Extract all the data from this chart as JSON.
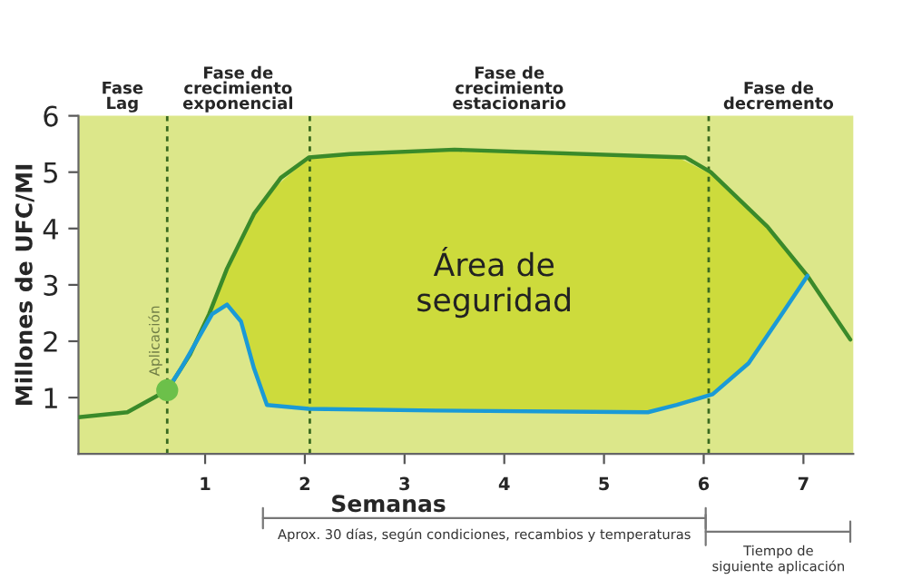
{
  "chart_data": {
    "type": "line",
    "xlabel": "Semanas",
    "ylabel": "Millones de UFC/MI",
    "xlim": [
      -0.27,
      7.5
    ],
    "xticks": [
      1,
      2,
      3,
      4,
      5,
      6,
      7
    ],
    "ylim": [
      0,
      6
    ],
    "yticks": [
      1,
      2,
      3,
      4,
      5,
      6
    ],
    "series": [
      {
        "color": "#3a8a2a",
        "x": [
          -0.27,
          0.22,
          0.62,
          0.85,
          1.04,
          1.22,
          1.49,
          1.76,
          2.04,
          2.45,
          3.5,
          5.82,
          6.07,
          6.64,
          7.04,
          7.47
        ],
        "values": [
          0.65,
          0.74,
          1.13,
          1.77,
          2.48,
          3.29,
          4.26,
          4.9,
          5.26,
          5.32,
          5.4,
          5.26,
          5.0,
          4.03,
          3.16,
          2.03
        ]
      },
      {
        "color": "#1a9ad6",
        "x": [
          0.62,
          0.76,
          1.07,
          1.22,
          1.36,
          1.49,
          1.62,
          2.04,
          3.31,
          5.44,
          5.73,
          6.09,
          6.45,
          6.76,
          7.04
        ],
        "values": [
          1.13,
          1.52,
          2.48,
          2.65,
          2.35,
          1.52,
          0.87,
          0.8,
          0.77,
          0.74,
          0.87,
          1.06,
          1.61,
          2.42,
          3.16
        ],
        "lower": [
          1.13,
          1.52,
          2.48,
          2.65,
          2.35,
          1.52,
          0.87,
          0.8,
          0.77,
          0.74,
          0.87,
          1.06,
          1.61,
          2.42,
          3.16
        ],
        "upper": [
          1.13,
          1.5,
          2.6,
          3.29,
          3.8,
          4.26,
          4.6,
          5.26,
          5.38,
          5.3,
          5.27,
          4.95,
          4.4,
          3.8,
          3.16
        ]
      },
      {
        "type": "scatter",
        "name": "Aplicación",
        "color": "#6cc04a",
        "x": [
          0.62
        ],
        "values": [
          1.13
        ]
      }
    ],
    "ref_lines": [
      {
        "axis": "x",
        "value": 0.62,
        "line_style": "dashed",
        "color": "#3a6a20"
      },
      {
        "axis": "x",
        "value": 2.05,
        "line_style": "dashed",
        "color": "#3a6a20"
      },
      {
        "axis": "x",
        "value": 6.05,
        "line_style": "dashed",
        "color": "#3a6a20"
      }
    ],
    "annotations": [
      "Fase\nLag",
      "Fase de\ncrecimiento\nexponencial",
      "Fase de\ncrecimiento\nestacionario",
      "Fase de\ndecremento",
      "Área de\nseguridad",
      "Aprox. 30 días, según condiciones, recambios y temperaturas",
      "Tiempo de\nsiguiente aplicación"
    ],
    "grid": false,
    "legend": false
  }
}
